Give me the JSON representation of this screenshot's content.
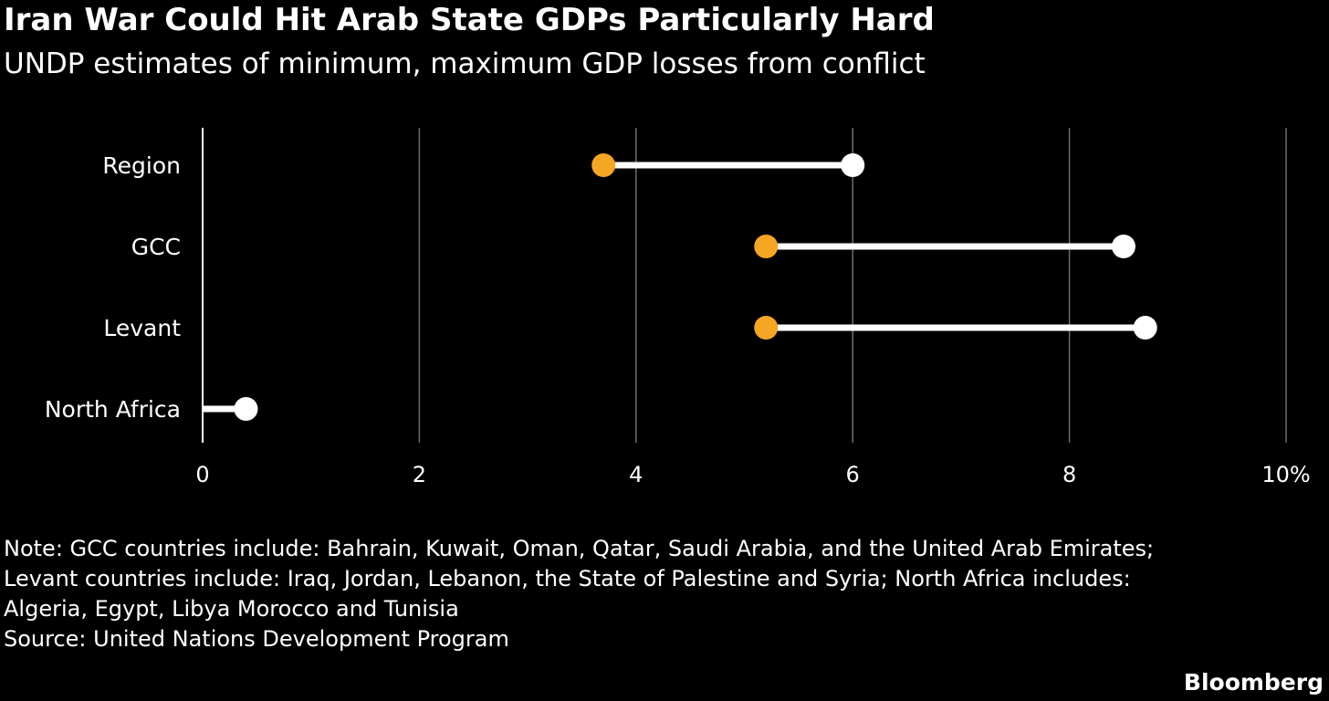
{
  "chart_data": {
    "type": "range-dot",
    "title": "Iran War Could Hit Arab State GDPs Particularly Hard",
    "subtitle": "UNDP estimates of minimum, maximum GDP losses from conflict",
    "categories": [
      "Region",
      "GCC",
      "Levant",
      "North Africa"
    ],
    "series": [
      {
        "name": "Minimum",
        "color": "#f5a623",
        "values": [
          3.7,
          5.2,
          5.2,
          0.0
        ]
      },
      {
        "name": "Maximum",
        "color": "#ffffff",
        "values": [
          6.0,
          8.5,
          8.7,
          0.4
        ]
      }
    ],
    "xlim": [
      0,
      10
    ],
    "x_ticks": [
      "0",
      "2",
      "4",
      "6",
      "8",
      "10%"
    ],
    "x_tick_values": [
      0,
      2,
      4,
      6,
      8,
      10
    ],
    "grid": true
  },
  "notes": {
    "lines": [
      "Note: GCC countries include: Bahrain, Kuwait, Oman, Qatar, Saudi Arabia, and the United Arab Emirates;",
      "Levant countries include: Iraq, Jordan, Lebanon, the State of Palestine and Syria; North Africa includes:",
      "Algeria, Egypt, Libya Morocco and Tunisia"
    ],
    "source": "Source: United Nations Development Program"
  },
  "brand": "Bloomberg"
}
